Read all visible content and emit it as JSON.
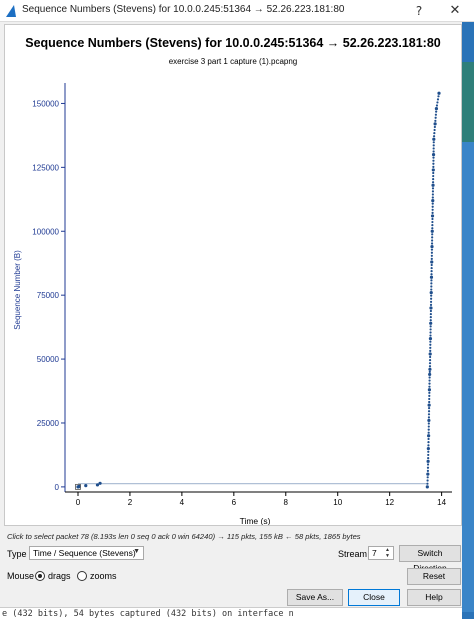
{
  "window": {
    "title": "Sequence Numbers (Stevens) for 10.0.0.245:51364 → 52.26.223.181:80",
    "help_glyph": "?",
    "close_glyph": "✕"
  },
  "colors": {
    "series": "#1f4e8c",
    "axis": "#1f3a93",
    "accent": "#0078d7"
  },
  "chart_data": {
    "type": "scatter",
    "title": "Sequence Numbers (Stevens) for 10.0.0.245:51364 → 52.26.223.181:80",
    "subtitle": "exercise 3 part 1 capture (1).pcapng",
    "xlabel": "Time (s)",
    "ylabel": "Sequence Number (B)",
    "xlim": [
      -0.5,
      14.4
    ],
    "ylim": [
      -2000,
      158000
    ],
    "xticks": [
      0,
      2,
      4,
      6,
      8,
      10,
      12,
      14
    ],
    "yticks": [
      0,
      25000,
      50000,
      75000,
      100000,
      125000,
      150000
    ],
    "grid": false,
    "series": [
      {
        "name": "",
        "x": [
          0.0,
          0.02,
          0.05,
          0.3,
          0.75,
          0.85,
          13.45,
          13.47,
          13.48,
          13.49,
          13.5,
          13.51,
          13.52,
          13.53,
          13.54,
          13.55,
          13.56,
          13.57,
          13.58,
          13.59,
          13.6,
          13.61,
          13.62,
          13.63,
          13.64,
          13.65,
          13.66,
          13.67,
          13.68,
          13.69,
          13.7,
          13.75,
          13.8,
          13.9
        ],
        "y": [
          0,
          0,
          200,
          500,
          800,
          1400,
          0,
          5000,
          10000,
          15000,
          20000,
          26000,
          32000,
          38000,
          44000,
          46000,
          52000,
          58000,
          64000,
          70000,
          76000,
          82000,
          88000,
          94000,
          100000,
          106000,
          112000,
          118000,
          124000,
          130000,
          136000,
          142000,
          148000,
          154000
        ]
      }
    ]
  },
  "status_hint": "Click to select packet 78 (8.193s len 0 seq 0 ack 0 win 64240) → 115 pkts, 155 kB ← 58 pkts, 1865 bytes",
  "controls": {
    "type_label": "Type",
    "type_value": "Time / Sequence (Stevens)",
    "stream_label": "Stream",
    "stream_value": "7",
    "switch_direction_label": "Switch Direction",
    "mouse_label": "Mouse",
    "drags_label": "drags",
    "zooms_label": "zooms",
    "reset_label": "Reset",
    "save_as_label": "Save As...",
    "close_label": "Close",
    "help_label": "Help"
  },
  "console_text": "e (432 bits), 54 bytes captured (432 bits) on interface n"
}
